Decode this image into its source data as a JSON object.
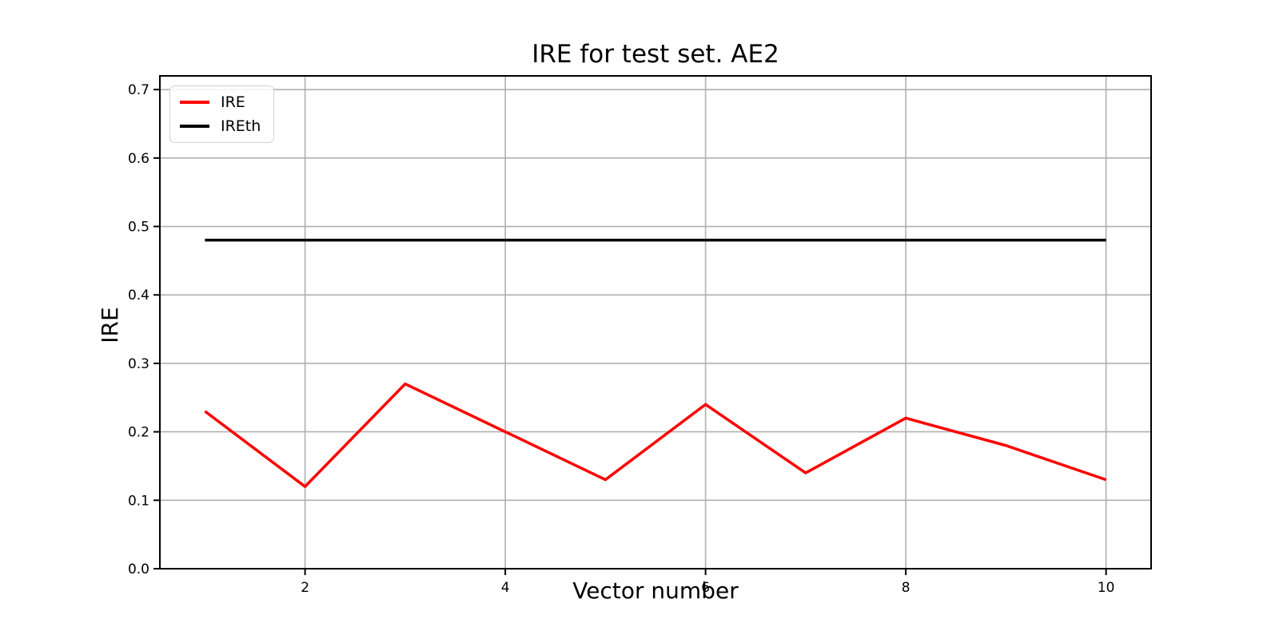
{
  "chart_data": {
    "type": "line",
    "title": "IRE for test set. AE2",
    "xlabel": "Vector number",
    "ylabel": "IRE",
    "x": [
      1,
      2,
      3,
      4,
      5,
      6,
      7,
      8,
      9,
      10
    ],
    "series": [
      {
        "name": "IRE",
        "color": "#ff0000",
        "values": [
          0.23,
          0.12,
          0.27,
          0.2,
          0.13,
          0.24,
          0.14,
          0.22,
          0.18,
          0.13
        ]
      },
      {
        "name": "IREth",
        "color": "#000000",
        "values": [
          0.48,
          0.48,
          0.48,
          0.48,
          0.48,
          0.48,
          0.48,
          0.48,
          0.48,
          0.48
        ]
      }
    ],
    "xticks": [
      2,
      4,
      6,
      8,
      10
    ],
    "xtick_labels": [
      "2",
      "4",
      "6",
      "8",
      "10"
    ],
    "yticks": [
      0.0,
      0.1,
      0.2,
      0.3,
      0.4,
      0.5,
      0.6,
      0.7
    ],
    "ytick_labels": [
      "0.0",
      "0.1",
      "0.2",
      "0.3",
      "0.4",
      "0.5",
      "0.6",
      "0.7"
    ],
    "xlim": [
      0.55,
      10.45
    ],
    "ylim": [
      0.0,
      0.72
    ],
    "grid": true,
    "grid_color": "#b0b0b0",
    "axis_color": "#000000",
    "background": "#ffffff",
    "legend_position": "upper left"
  }
}
